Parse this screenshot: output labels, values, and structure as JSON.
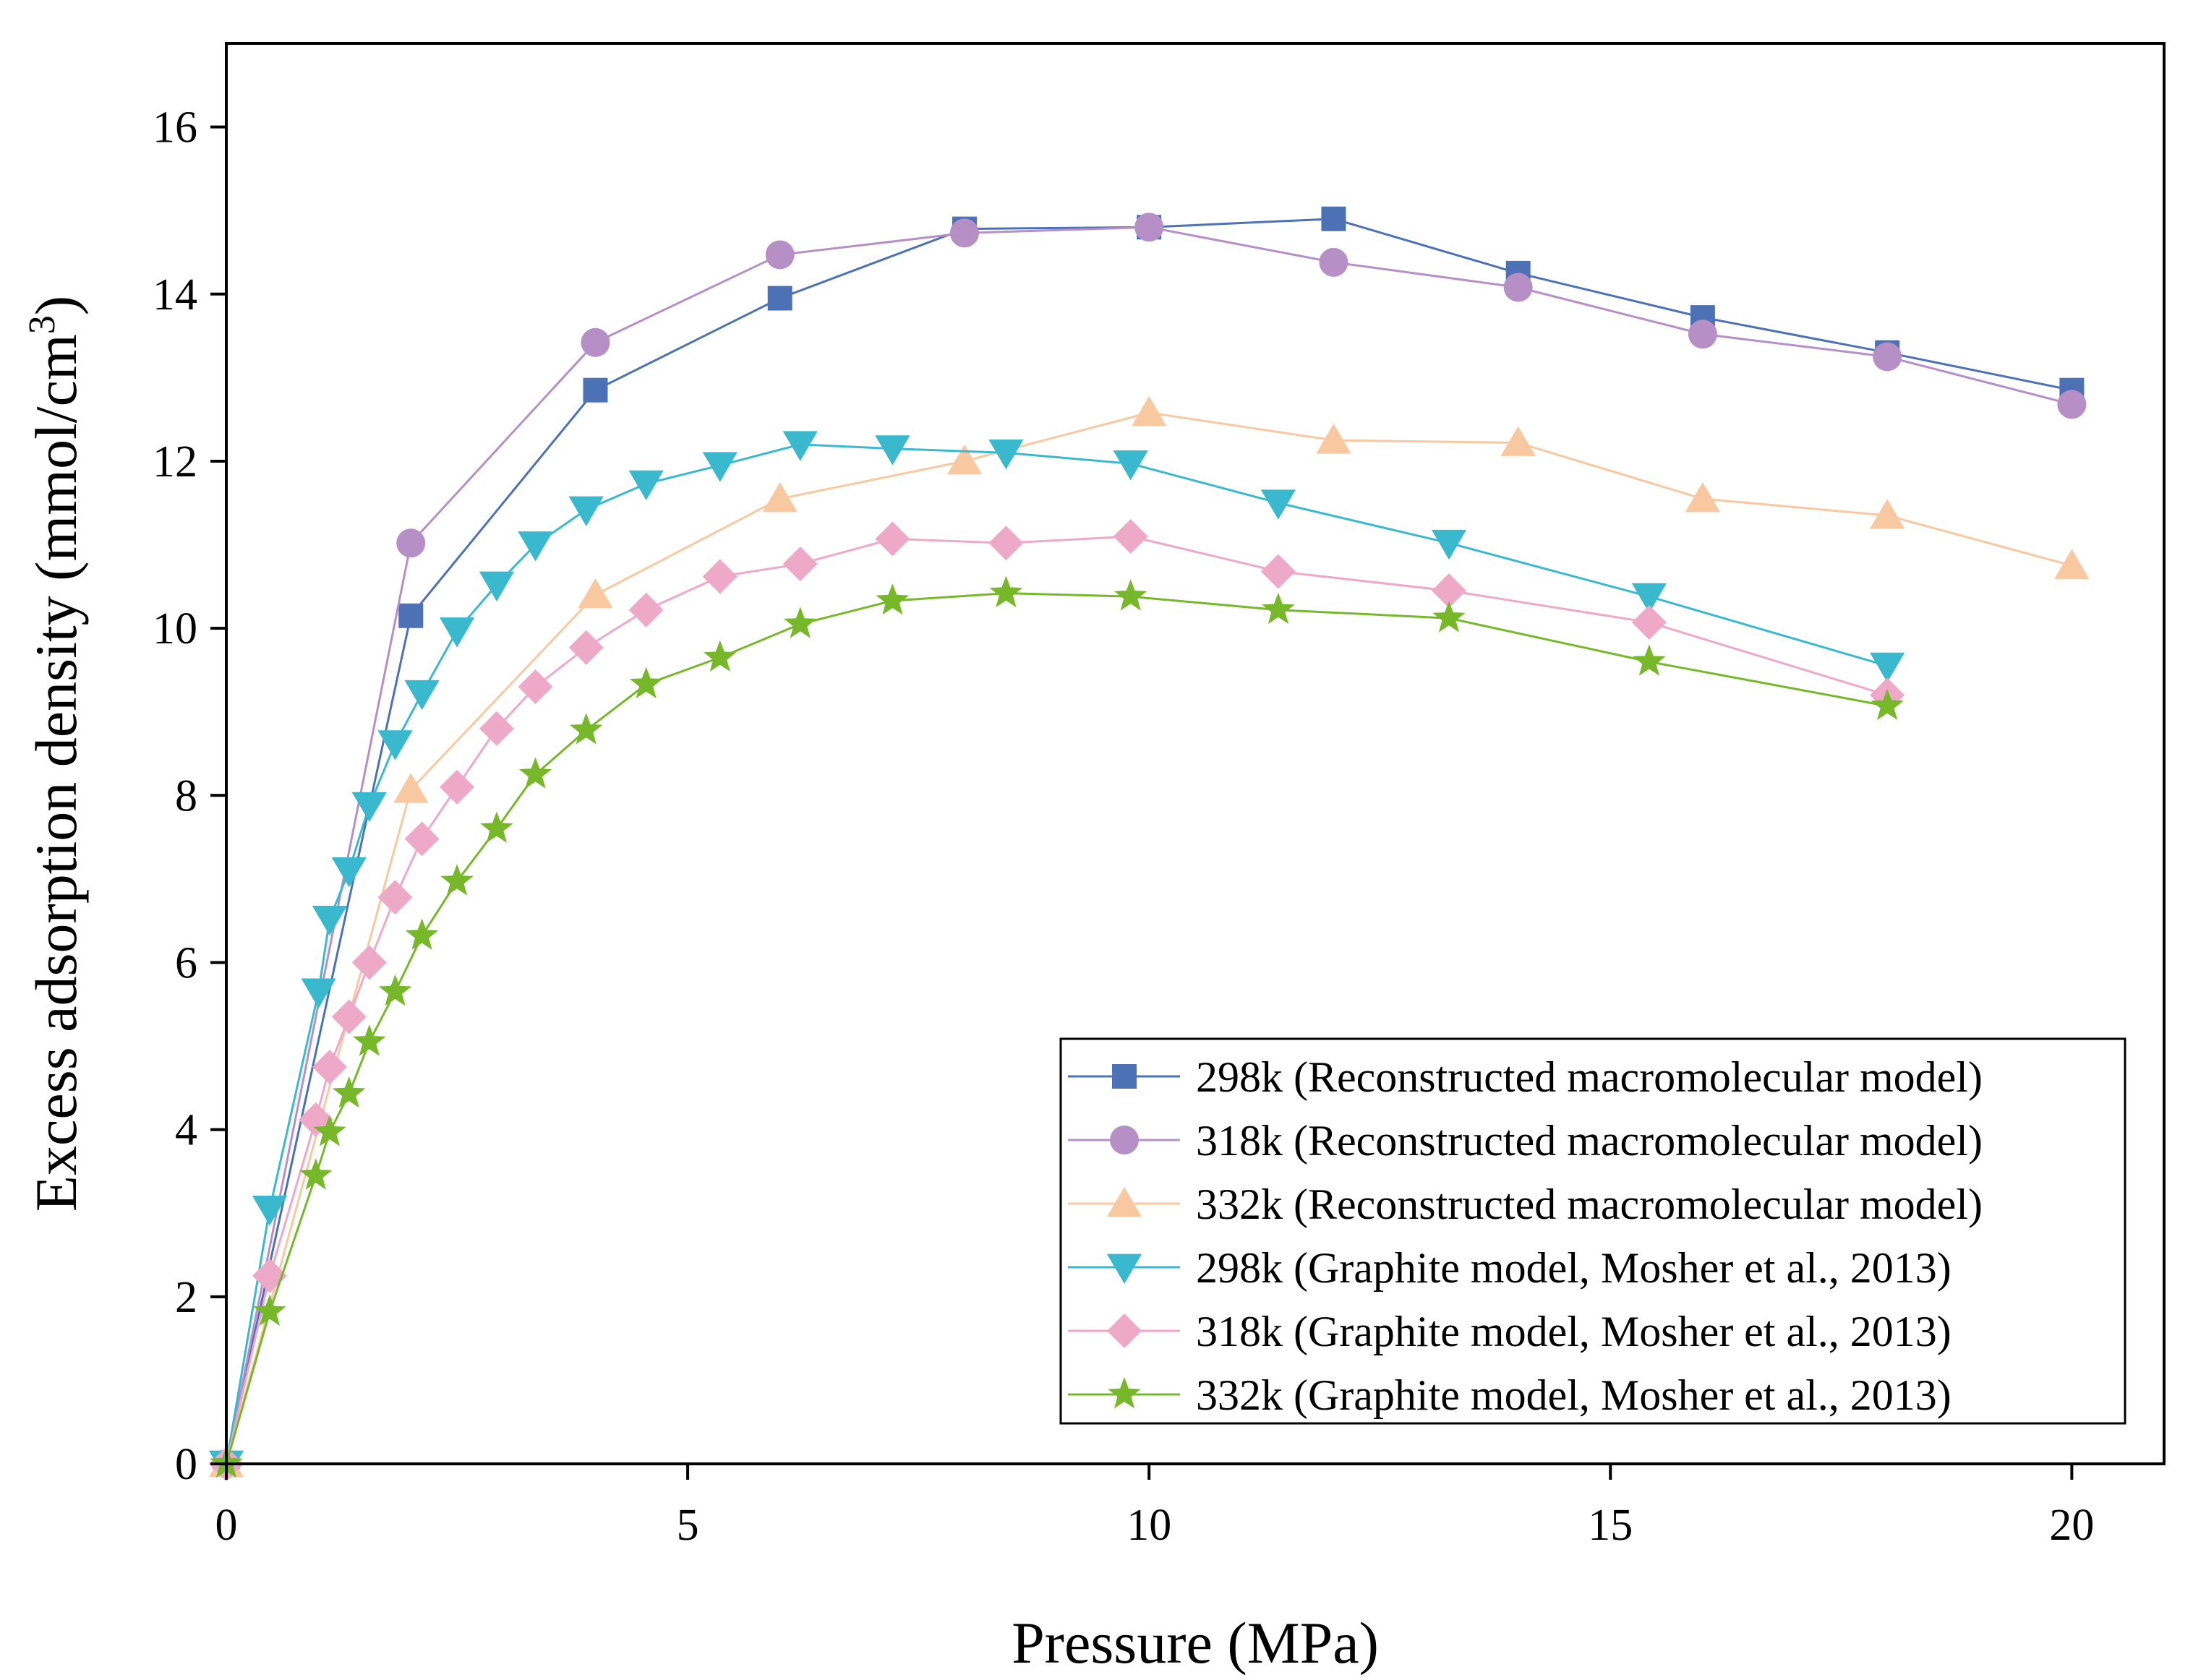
{
  "chart_data": {
    "type": "line",
    "title": "",
    "xlabel": "Pressure (MPa)",
    "ylabel": "Excess adsorption density (mmol/cm",
    "ylabel_superscript": "3",
    "ylabel_suffix": ")",
    "xlim": [
      0,
      21
    ],
    "ylim": [
      0,
      17
    ],
    "xticks": [
      0,
      5,
      10,
      15,
      20
    ],
    "yticks": [
      0,
      2,
      4,
      6,
      8,
      10,
      12,
      14,
      16
    ],
    "legend_position": "bottom-right",
    "grid": false,
    "series": [
      {
        "name": "298k (Reconstructed macromolecular model)",
        "marker": "square",
        "color": "#4d71b5",
        "x": [
          0,
          2,
          4,
          6,
          8,
          10,
          12,
          14,
          16,
          18,
          20
        ],
        "y": [
          0,
          10.15,
          12.85,
          13.95,
          14.78,
          14.8,
          14.9,
          14.25,
          13.72,
          13.3,
          12.85
        ]
      },
      {
        "name": "318k (Reconstructed macromolecular model)",
        "marker": "circle",
        "color": "#b58fc5",
        "x": [
          0,
          2,
          4,
          6,
          8,
          10,
          12,
          14,
          16,
          18,
          20
        ],
        "y": [
          0,
          11.02,
          13.42,
          14.47,
          14.73,
          14.8,
          14.38,
          14.08,
          13.52,
          13.25,
          12.68
        ]
      },
      {
        "name": "332k (Reconstructed macromolecular model)",
        "marker": "triangle-up",
        "color": "#f8c8a0",
        "x": [
          0,
          2,
          4,
          6,
          8,
          10,
          12,
          14,
          16,
          18,
          20
        ],
        "y": [
          0,
          8.07,
          10.4,
          11.55,
          12.0,
          12.58,
          12.25,
          12.22,
          11.55,
          11.35,
          10.75
        ]
      },
      {
        "name": "298k (Graphite model, Mosher et al., 2013)",
        "marker": "triangle-down",
        "color": "#3ab9ce",
        "x": [
          0,
          0.47,
          1.0,
          1.12,
          1.33,
          1.55,
          1.83,
          2.12,
          2.5,
          2.93,
          3.35,
          3.9,
          4.55,
          5.35,
          6.22,
          7.22,
          8.45,
          9.8,
          11.4,
          13.25,
          15.42,
          18.0
        ],
        "y": [
          0,
          3.05,
          5.65,
          6.52,
          7.1,
          7.88,
          8.62,
          9.22,
          9.97,
          10.52,
          11.0,
          11.42,
          11.73,
          11.95,
          12.2,
          12.15,
          12.1,
          11.97,
          11.5,
          11.02,
          10.38,
          9.55
        ]
      },
      {
        "name": "318k (Graphite model, Mosher et al., 2013)",
        "marker": "diamond",
        "color": "#eea8c8",
        "x": [
          0,
          0.47,
          0.97,
          1.12,
          1.33,
          1.55,
          1.83,
          2.12,
          2.5,
          2.93,
          3.35,
          3.9,
          4.55,
          5.35,
          6.22,
          7.22,
          8.45,
          9.8,
          11.4,
          13.25,
          15.42,
          18.0
        ],
        "y": [
          0,
          2.25,
          4.12,
          4.75,
          5.35,
          6.0,
          6.78,
          7.48,
          8.1,
          8.8,
          9.3,
          9.77,
          10.22,
          10.62,
          10.77,
          11.07,
          11.02,
          11.1,
          10.68,
          10.45,
          10.07,
          9.2
        ]
      },
      {
        "name": "332k (Graphite model, Mosher et al., 2013)",
        "marker": "star",
        "color": "#76b82a",
        "x": [
          0,
          0.47,
          0.97,
          1.12,
          1.33,
          1.55,
          1.83,
          2.12,
          2.5,
          2.93,
          3.35,
          3.9,
          4.55,
          5.35,
          6.22,
          7.22,
          8.45,
          9.8,
          11.4,
          13.25,
          15.42,
          18.0
        ],
        "y": [
          0,
          1.82,
          3.45,
          3.97,
          4.43,
          5.05,
          5.65,
          6.32,
          6.97,
          7.6,
          8.25,
          8.78,
          9.33,
          9.65,
          10.05,
          10.33,
          10.42,
          10.38,
          10.22,
          10.12,
          9.6,
          9.07
        ]
      }
    ]
  }
}
